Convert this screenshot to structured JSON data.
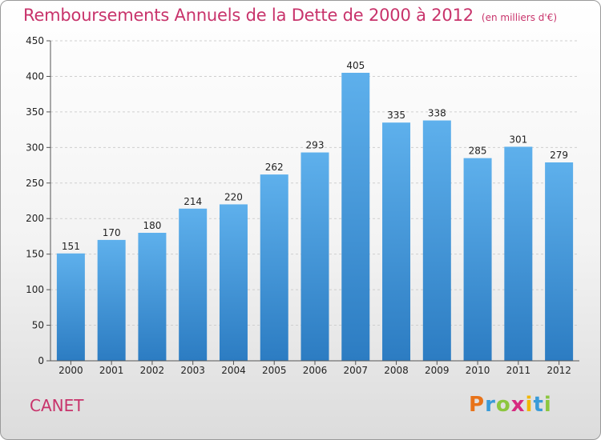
{
  "chart_data": {
    "type": "bar",
    "title": "Remboursements Annuels de la Dette de 2000 à 2012",
    "unit_label": "(en milliers d'€)",
    "categories": [
      "2000",
      "2001",
      "2002",
      "2003",
      "2004",
      "2005",
      "2006",
      "2007",
      "2008",
      "2009",
      "2010",
      "2011",
      "2012"
    ],
    "values": [
      151,
      170,
      180,
      214,
      220,
      262,
      293,
      405,
      335,
      338,
      285,
      301,
      279
    ],
    "ylim": [
      0,
      450
    ],
    "yticks": [
      0,
      50,
      100,
      150,
      200,
      250,
      300,
      350,
      400,
      450
    ],
    "grid": true,
    "bar_color": "#3a95dd"
  },
  "footer": {
    "city": "CANET",
    "logo": {
      "letters": [
        "P",
        "r",
        "o",
        "x",
        "i",
        "t",
        "i"
      ],
      "colors": [
        "#e8731a",
        "#3a9bd8",
        "#8cc63f",
        "#d62a80",
        "#f2b705",
        "#3a9bd8",
        "#8cc63f"
      ]
    }
  }
}
